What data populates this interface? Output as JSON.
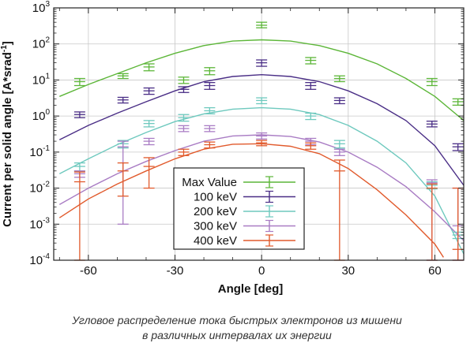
{
  "chart_data": {
    "type": "scatter",
    "xlabel": "Angle [deg]",
    "ylabel": "Current per solid angle  [A*srad",
    "ylabel_sup": "-1",
    "ylabel_end": "]",
    "xlim": [
      -72,
      70
    ],
    "ylim": [
      0.0001,
      1000
    ],
    "yscale": "log",
    "grid": true,
    "legend_position": "center-bottom",
    "xticks": [
      -60,
      -30,
      0,
      30,
      60
    ],
    "xtick_labels": [
      "-60",
      "-30",
      "0",
      "30",
      "60"
    ],
    "yticks": [
      {
        "value": 0.0001,
        "base": "10",
        "exp": "-4"
      },
      {
        "value": 0.001,
        "base": "10",
        "exp": "-3"
      },
      {
        "value": 0.01,
        "base": "10",
        "exp": "-2"
      },
      {
        "value": 0.1,
        "base": "10",
        "exp": "-1"
      },
      {
        "value": 1,
        "base": "10",
        "exp": "0"
      },
      {
        "value": 10,
        "base": "10",
        "exp": "1"
      },
      {
        "value": 100,
        "base": "10",
        "exp": "2"
      },
      {
        "value": 1000,
        "base": "10",
        "exp": "3"
      }
    ],
    "series": [
      {
        "name": "Max Value",
        "color": "#5cb638",
        "points": [
          {
            "x": -63,
            "y": 9,
            "lo": 7,
            "hi": 11
          },
          {
            "x": -48,
            "y": 13,
            "lo": 11,
            "hi": 15
          },
          {
            "x": -39,
            "y": 23,
            "lo": 18,
            "hi": 28
          },
          {
            "x": -27,
            "y": 10,
            "lo": 8,
            "hi": 12
          },
          {
            "x": -18,
            "y": 18,
            "lo": 14,
            "hi": 22
          },
          {
            "x": 0,
            "y": 330,
            "lo": 280,
            "hi": 400
          },
          {
            "x": 17,
            "y": 35,
            "lo": 28,
            "hi": 42
          },
          {
            "x": 27,
            "y": 11,
            "lo": 9,
            "hi": 13
          },
          {
            "x": 59,
            "y": 9,
            "lo": 7,
            "hi": 11
          },
          {
            "x": 68,
            "y": 2.5,
            "lo": 2,
            "hi": 3
          }
        ],
        "curve": [
          {
            "x": -70,
            "y": 3.5
          },
          {
            "x": -60,
            "y": 7.5
          },
          {
            "x": -50,
            "y": 15
          },
          {
            "x": -40,
            "y": 30
          },
          {
            "x": -30,
            "y": 55
          },
          {
            "x": -20,
            "y": 90
          },
          {
            "x": -10,
            "y": 120
          },
          {
            "x": 0,
            "y": 130
          },
          {
            "x": 10,
            "y": 120
          },
          {
            "x": 20,
            "y": 90
          },
          {
            "x": 30,
            "y": 55
          },
          {
            "x": 40,
            "y": 28
          },
          {
            "x": 50,
            "y": 11
          },
          {
            "x": 60,
            "y": 3.5
          },
          {
            "x": 70,
            "y": 0.75
          }
        ]
      },
      {
        "name": "100 keV",
        "color": "#4a2e86",
        "points": [
          {
            "x": -63,
            "y": 1.1,
            "lo": 0.9,
            "hi": 1.3
          },
          {
            "x": -48,
            "y": 2.8,
            "lo": 2.3,
            "hi": 3.3
          },
          {
            "x": -39,
            "y": 5,
            "lo": 4,
            "hi": 6
          },
          {
            "x": -27,
            "y": 5.5,
            "lo": 4.5,
            "hi": 6.5
          },
          {
            "x": -18,
            "y": 7,
            "lo": 5.5,
            "hi": 8.5
          },
          {
            "x": 0,
            "y": 30,
            "lo": 24,
            "hi": 36
          },
          {
            "x": 17,
            "y": 7,
            "lo": 5.5,
            "hi": 8.5
          },
          {
            "x": 27,
            "y": 2.7,
            "lo": 2.2,
            "hi": 3.2
          },
          {
            "x": 59,
            "y": 0.6,
            "lo": 0.5,
            "hi": 0.72
          },
          {
            "x": 68,
            "y": 0.14,
            "lo": 0.11,
            "hi": 0.17
          }
        ],
        "curve": [
          {
            "x": -70,
            "y": 0.22
          },
          {
            "x": -60,
            "y": 0.55
          },
          {
            "x": -50,
            "y": 1.2
          },
          {
            "x": -40,
            "y": 2.5
          },
          {
            "x": -30,
            "y": 5
          },
          {
            "x": -20,
            "y": 9
          },
          {
            "x": -10,
            "y": 12.5
          },
          {
            "x": 0,
            "y": 14
          },
          {
            "x": 10,
            "y": 12.5
          },
          {
            "x": 20,
            "y": 9
          },
          {
            "x": 30,
            "y": 5
          },
          {
            "x": 40,
            "y": 2.2
          },
          {
            "x": 50,
            "y": 0.75
          },
          {
            "x": 60,
            "y": 0.15
          },
          {
            "x": 70,
            "y": 0.012
          }
        ]
      },
      {
        "name": "200 keV",
        "color": "#6ec9be",
        "points": [
          {
            "x": -63,
            "y": 0.04,
            "lo": 0.03,
            "hi": 0.05
          },
          {
            "x": -48,
            "y": 0.17,
            "lo": 0.13,
            "hi": 0.21
          },
          {
            "x": -39,
            "y": 0.62,
            "lo": 0.5,
            "hi": 0.75
          },
          {
            "x": -27,
            "y": 0.9,
            "lo": 0.72,
            "hi": 1.1
          },
          {
            "x": -18,
            "y": 1.4,
            "lo": 1.15,
            "hi": 1.7
          },
          {
            "x": 0,
            "y": 2.7,
            "lo": 2.2,
            "hi": 3.2
          },
          {
            "x": 17,
            "y": 1.0,
            "lo": 0.8,
            "hi": 1.2
          },
          {
            "x": 27,
            "y": 0.17,
            "lo": 0.13,
            "hi": 0.21
          },
          {
            "x": 59,
            "y": 0.012,
            "lo": 0.0095,
            "hi": 0.015
          },
          {
            "x": 68,
            "y": 0.0005,
            "lo": 0.0004,
            "hi": 0.0006
          }
        ],
        "curve": [
          {
            "x": -70,
            "y": 0.025
          },
          {
            "x": -60,
            "y": 0.065
          },
          {
            "x": -50,
            "y": 0.16
          },
          {
            "x": -40,
            "y": 0.35
          },
          {
            "x": -30,
            "y": 0.7
          },
          {
            "x": -20,
            "y": 1.15
          },
          {
            "x": -10,
            "y": 1.55
          },
          {
            "x": 0,
            "y": 1.7
          },
          {
            "x": 10,
            "y": 1.55
          },
          {
            "x": 20,
            "y": 1.1
          },
          {
            "x": 30,
            "y": 0.55
          },
          {
            "x": 40,
            "y": 0.2
          },
          {
            "x": 50,
            "y": 0.05
          },
          {
            "x": 60,
            "y": 0.006
          },
          {
            "x": 70,
            "y": 0.00015
          }
        ]
      },
      {
        "name": "300 keV",
        "color": "#a97cc4",
        "points": [
          {
            "x": -63,
            "y": 0.025,
            "lo": 0.02,
            "hi": 0.03
          },
          {
            "x": -48,
            "y": 0.14,
            "lo": 0.001,
            "hi": 0.2
          },
          {
            "x": -39,
            "y": 0.2,
            "lo": 0.16,
            "hi": 0.24
          },
          {
            "x": -27,
            "y": 0.45,
            "lo": 0.37,
            "hi": 0.54
          },
          {
            "x": -18,
            "y": 0.45,
            "lo": 0.37,
            "hi": 0.54
          },
          {
            "x": 0,
            "y": 0.28,
            "lo": 0.23,
            "hi": 0.34
          },
          {
            "x": 17,
            "y": 0.2,
            "lo": 0.16,
            "hi": 0.24
          },
          {
            "x": 27,
            "y": 0.1,
            "lo": 0.08,
            "hi": 0.12
          },
          {
            "x": 59,
            "y": 0.014,
            "lo": 0.0001,
            "hi": 0.017
          },
          {
            "x": 68,
            "y": 0.0009,
            "lo": 0.0001,
            "hi": 0.01
          }
        ],
        "curve": [
          {
            "x": -70,
            "y": 0.0035
          },
          {
            "x": -60,
            "y": 0.01
          },
          {
            "x": -50,
            "y": 0.025
          },
          {
            "x": -40,
            "y": 0.055
          },
          {
            "x": -30,
            "y": 0.11
          },
          {
            "x": -20,
            "y": 0.2
          },
          {
            "x": -10,
            "y": 0.28
          },
          {
            "x": 0,
            "y": 0.3
          },
          {
            "x": 10,
            "y": 0.27
          },
          {
            "x": 20,
            "y": 0.19
          },
          {
            "x": 30,
            "y": 0.1
          },
          {
            "x": 40,
            "y": 0.038
          },
          {
            "x": 50,
            "y": 0.011
          },
          {
            "x": 60,
            "y": 0.0022
          },
          {
            "x": 70,
            "y": 0.00035
          }
        ]
      },
      {
        "name": "400 keV",
        "color": "#e15a2c",
        "points": [
          {
            "x": -63,
            "y": 0.015,
            "lo": 0.0001,
            "hi": 0.028
          },
          {
            "x": -48,
            "y": 0.03,
            "lo": 0.006,
            "hi": 0.05
          },
          {
            "x": -39,
            "y": 0.04,
            "lo": 0.01,
            "hi": 0.07
          },
          {
            "x": -27,
            "y": 0.1,
            "lo": 0.08,
            "hi": 0.12
          },
          {
            "x": -18,
            "y": 0.16,
            "lo": 0.13,
            "hi": 0.19
          },
          {
            "x": 0,
            "y": 0.18,
            "lo": 0.15,
            "hi": 0.21
          },
          {
            "x": 17,
            "y": 0.15,
            "lo": 0.12,
            "hi": 0.18
          },
          {
            "x": 27,
            "y": 0.03,
            "lo": 0.0001,
            "hi": 0.06
          },
          {
            "x": 59,
            "y": 0.01,
            "lo": 0.0001,
            "hi": 0.013
          },
          {
            "x": 68,
            "y": 0.0002,
            "lo": 0.0001,
            "hi": 0.01
          }
        ],
        "curve": [
          {
            "x": -70,
            "y": 0.0015
          },
          {
            "x": -60,
            "y": 0.005
          },
          {
            "x": -50,
            "y": 0.013
          },
          {
            "x": -40,
            "y": 0.03
          },
          {
            "x": -30,
            "y": 0.065
          },
          {
            "x": -20,
            "y": 0.12
          },
          {
            "x": -10,
            "y": 0.165
          },
          {
            "x": 0,
            "y": 0.17
          },
          {
            "x": 10,
            "y": 0.145
          },
          {
            "x": 20,
            "y": 0.09
          },
          {
            "x": 30,
            "y": 0.035
          },
          {
            "x": 40,
            "y": 0.009
          },
          {
            "x": 50,
            "y": 0.0018
          },
          {
            "x": 60,
            "y": 0.00028
          },
          {
            "x": 63,
            "y": 0.00012
          }
        ]
      }
    ]
  },
  "caption": {
    "line1": "Угловое распределение тока быстрых электронов из мишени",
    "line2": "в различных интервалах их энергии"
  }
}
